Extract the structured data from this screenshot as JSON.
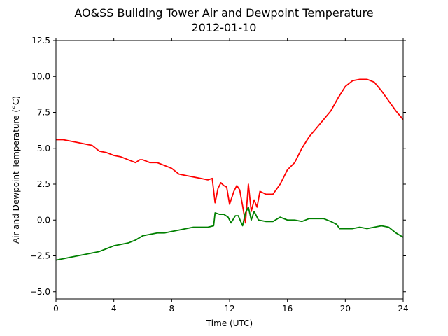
{
  "chart_data": {
    "type": "line",
    "title": "AO&SS Building Tower Air and Dewpoint Temperature",
    "subtitle": "2012-01-10",
    "xlabel": "Time (UTC)",
    "ylabel": "Air and Dewpoint Temperature (°C)",
    "xlim": [
      0,
      24
    ],
    "ylim": [
      -5.5,
      12.5
    ],
    "xticks": [
      0,
      4,
      8,
      12,
      16,
      20,
      24
    ],
    "yticks": [
      -5.0,
      -2.5,
      0.0,
      2.5,
      5.0,
      7.5,
      10.0,
      12.5
    ],
    "grid": false,
    "series": [
      {
        "color": "#ff0000",
        "points": [
          [
            0,
            5.6
          ],
          [
            0.5,
            5.6
          ],
          [
            1,
            5.5
          ],
          [
            1.5,
            5.4
          ],
          [
            2,
            5.3
          ],
          [
            2.5,
            5.2
          ],
          [
            3,
            4.8
          ],
          [
            3.5,
            4.7
          ],
          [
            4,
            4.5
          ],
          [
            4.5,
            4.4
          ],
          [
            5,
            4.2
          ],
          [
            5.5,
            4.0
          ],
          [
            5.8,
            4.2
          ],
          [
            6,
            4.2
          ],
          [
            6.5,
            4.0
          ],
          [
            7,
            4.0
          ],
          [
            7.5,
            3.8
          ],
          [
            8,
            3.6
          ],
          [
            8.5,
            3.2
          ],
          [
            9,
            3.1
          ],
          [
            9.5,
            3.0
          ],
          [
            10,
            2.9
          ],
          [
            10.5,
            2.8
          ],
          [
            10.8,
            2.9
          ],
          [
            11.0,
            1.2
          ],
          [
            11.2,
            2.2
          ],
          [
            11.4,
            2.6
          ],
          [
            11.6,
            2.4
          ],
          [
            11.8,
            2.3
          ],
          [
            12.0,
            1.1
          ],
          [
            12.3,
            2.0
          ],
          [
            12.5,
            2.4
          ],
          [
            12.7,
            2.1
          ],
          [
            12.9,
            1.0
          ],
          [
            13.1,
            -0.2
          ],
          [
            13.3,
            2.5
          ],
          [
            13.5,
            0.6
          ],
          [
            13.7,
            1.4
          ],
          [
            13.9,
            0.9
          ],
          [
            14.1,
            2.0
          ],
          [
            14.5,
            1.8
          ],
          [
            15,
            1.8
          ],
          [
            15.5,
            2.5
          ],
          [
            16,
            3.5
          ],
          [
            16.5,
            4.0
          ],
          [
            17,
            5.0
          ],
          [
            17.5,
            5.8
          ],
          [
            18,
            6.4
          ],
          [
            18.5,
            7.0
          ],
          [
            19,
            7.6
          ],
          [
            19.5,
            8.5
          ],
          [
            20,
            9.3
          ],
          [
            20.5,
            9.7
          ],
          [
            21,
            9.8
          ],
          [
            21.5,
            9.8
          ],
          [
            22,
            9.6
          ],
          [
            22.5,
            9.0
          ],
          [
            23,
            8.3
          ],
          [
            23.5,
            7.6
          ],
          [
            24,
            7.0
          ]
        ]
      },
      {
        "color": "#008000",
        "points": [
          [
            0,
            -2.8
          ],
          [
            0.5,
            -2.7
          ],
          [
            1,
            -2.6
          ],
          [
            2,
            -2.4
          ],
          [
            3,
            -2.2
          ],
          [
            3.5,
            -2.0
          ],
          [
            4,
            -1.8
          ],
          [
            4.5,
            -1.7
          ],
          [
            5,
            -1.6
          ],
          [
            5.5,
            -1.4
          ],
          [
            6,
            -1.1
          ],
          [
            6.5,
            -1.0
          ],
          [
            7,
            -0.9
          ],
          [
            7.5,
            -0.9
          ],
          [
            8,
            -0.8
          ],
          [
            8.5,
            -0.7
          ],
          [
            9,
            -0.6
          ],
          [
            9.5,
            -0.5
          ],
          [
            10,
            -0.5
          ],
          [
            10.5,
            -0.5
          ],
          [
            10.9,
            -0.4
          ],
          [
            11.0,
            0.5
          ],
          [
            11.3,
            0.4
          ],
          [
            11.6,
            0.4
          ],
          [
            11.9,
            0.2
          ],
          [
            12.1,
            -0.2
          ],
          [
            12.4,
            0.3
          ],
          [
            12.6,
            0.3
          ],
          [
            12.9,
            -0.4
          ],
          [
            13.1,
            0.5
          ],
          [
            13.3,
            0.9
          ],
          [
            13.5,
            0.0
          ],
          [
            13.7,
            0.6
          ],
          [
            14,
            0.0
          ],
          [
            14.5,
            -0.1
          ],
          [
            15,
            -0.1
          ],
          [
            15.5,
            0.2
          ],
          [
            16,
            0.0
          ],
          [
            16.5,
            0.0
          ],
          [
            17,
            -0.1
          ],
          [
            17.5,
            0.1
          ],
          [
            18,
            0.1
          ],
          [
            18.5,
            0.1
          ],
          [
            19,
            -0.1
          ],
          [
            19.4,
            -0.3
          ],
          [
            19.6,
            -0.6
          ],
          [
            20,
            -0.6
          ],
          [
            20.5,
            -0.6
          ],
          [
            21,
            -0.5
          ],
          [
            21.5,
            -0.6
          ],
          [
            22,
            -0.5
          ],
          [
            22.5,
            -0.4
          ],
          [
            23,
            -0.5
          ],
          [
            23.5,
            -0.9
          ],
          [
            24,
            -1.2
          ]
        ]
      }
    ]
  }
}
